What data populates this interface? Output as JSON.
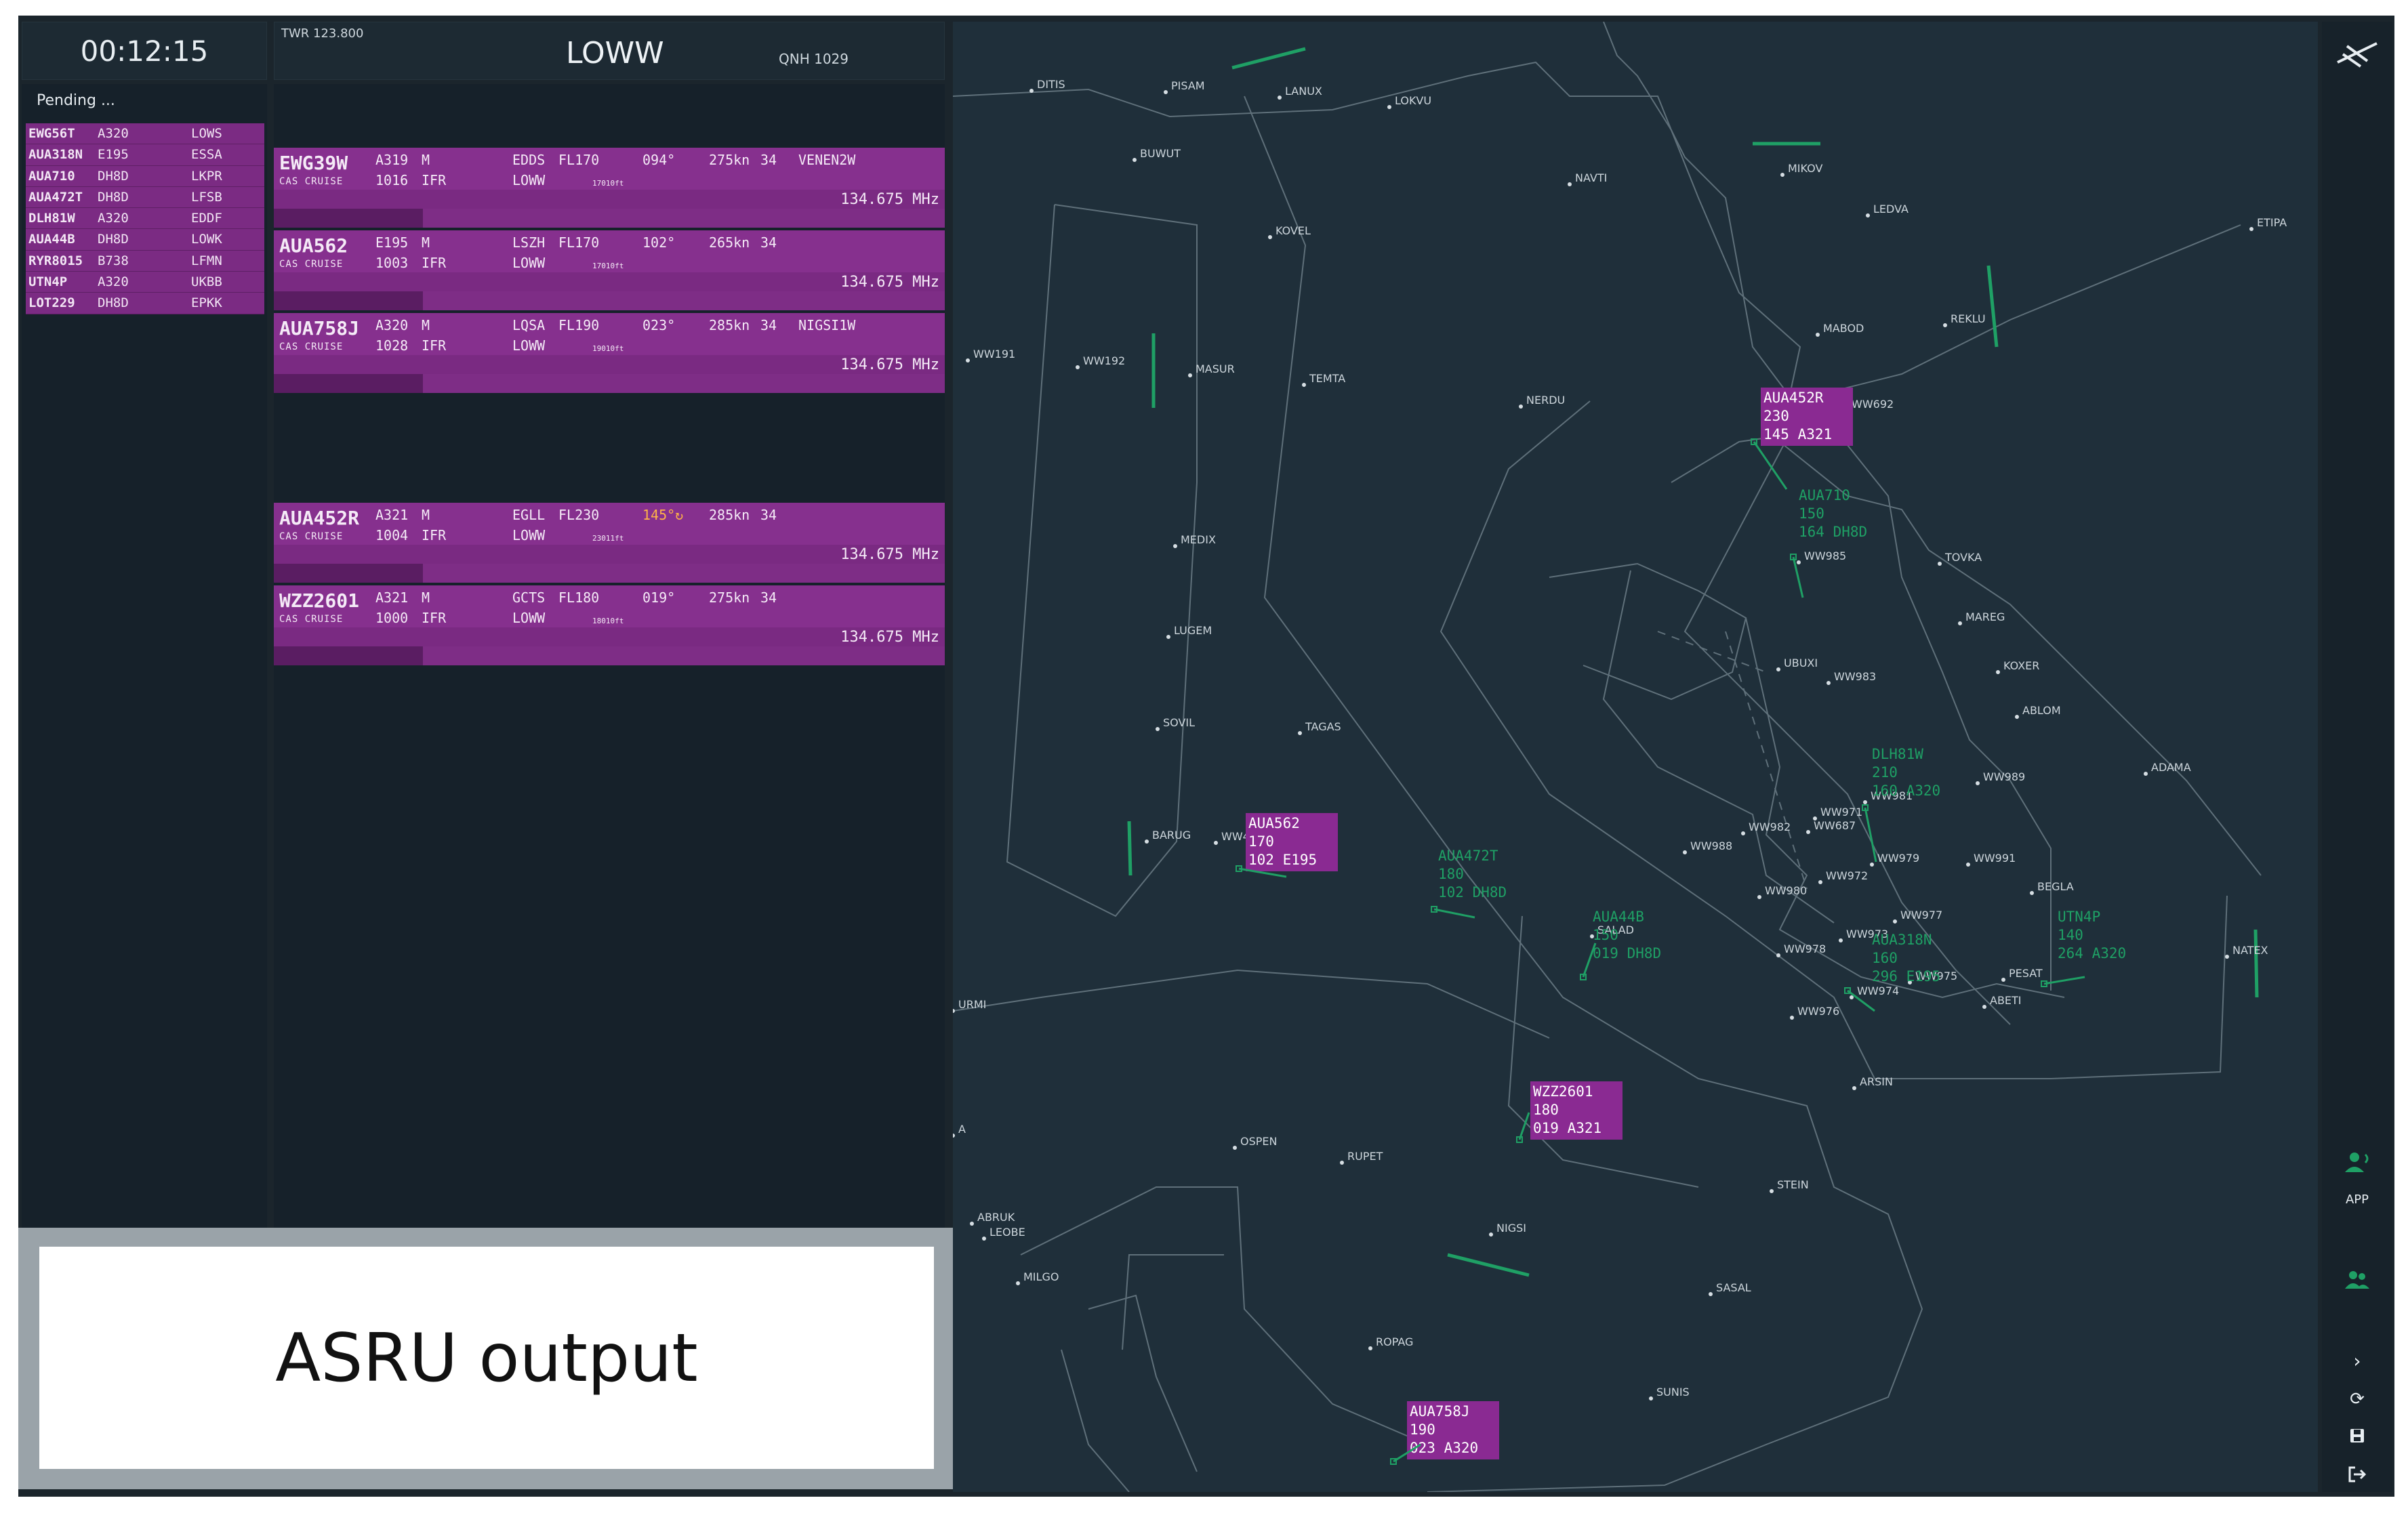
{
  "clock": "00:12:15",
  "header": {
    "frequency": "TWR 123.800",
    "airport": "LOWW",
    "qnh": "QNH 1029"
  },
  "pending": {
    "title": "Pending ...",
    "rows": [
      {
        "callsign": "EWG56T",
        "type": "A320",
        "dest": "LOWS"
      },
      {
        "callsign": "AUA318N",
        "type": "E195",
        "dest": "ESSA"
      },
      {
        "callsign": "AUA710",
        "type": "DH8D",
        "dest": "LKPR"
      },
      {
        "callsign": "AUA472T",
        "type": "DH8D",
        "dest": "LFSB"
      },
      {
        "callsign": "DLH81W",
        "type": "A320",
        "dest": "EDDF"
      },
      {
        "callsign": "AUA44B",
        "type": "DH8D",
        "dest": "LOWK"
      },
      {
        "callsign": "RYR8015",
        "type": "B738",
        "dest": "LFMN"
      },
      {
        "callsign": "UTN4P",
        "type": "A320",
        "dest": "UKBB"
      },
      {
        "callsign": "LOT229",
        "type": "DH8D",
        "dest": "EPKK"
      }
    ]
  },
  "strips": [
    {
      "callsign": "EWG39W",
      "status": "CAS CRUISE",
      "type": "A319",
      "wtc": "M",
      "squawk": "1016",
      "rules": "IFR",
      "adep": "EDDS",
      "fl": "FL170",
      "ades": "LOWW",
      "alt": "17010ft",
      "heading": "094°",
      "heading_amber": false,
      "speed": "275kn",
      "rwy": "34",
      "route": "VENEN2W",
      "freq": "134.675 MHz"
    },
    {
      "callsign": "AUA562",
      "status": "CAS CRUISE",
      "type": "E195",
      "wtc": "M",
      "squawk": "1003",
      "rules": "IFR",
      "adep": "LSZH",
      "fl": "FL170",
      "ades": "LOWW",
      "alt": "17010ft",
      "heading": "102°",
      "heading_amber": false,
      "speed": "265kn",
      "rwy": "34",
      "route": "",
      "freq": "134.675 MHz"
    },
    {
      "callsign": "AUA758J",
      "status": "CAS CRUISE",
      "type": "A320",
      "wtc": "M",
      "squawk": "1028",
      "rules": "IFR",
      "adep": "LQSA",
      "fl": "FL190",
      "ades": "LOWW",
      "alt": "19010ft",
      "heading": "023°",
      "heading_amber": false,
      "speed": "285kn",
      "rwy": "34",
      "route": "NIGSI1W",
      "freq": "134.675 MHz"
    },
    {
      "callsign": "AUA452R",
      "status": "CAS CRUISE",
      "type": "A321",
      "wtc": "M",
      "squawk": "1004",
      "rules": "IFR",
      "adep": "EGLL",
      "fl": "FL230",
      "ades": "LOWW",
      "alt": "23011ft",
      "heading": "145°↻",
      "heading_amber": true,
      "speed": "285kn",
      "rwy": "34",
      "route": "",
      "freq": "134.675 MHz"
    },
    {
      "callsign": "WZZ2601",
      "status": "CAS CRUISE",
      "type": "A321",
      "wtc": "M",
      "squawk": "1000",
      "rules": "IFR",
      "adep": "GCTS",
      "fl": "FL180",
      "ades": "LOWW",
      "alt": "18010ft",
      "heading": "019°",
      "heading_amber": false,
      "speed": "275kn",
      "rwy": "34",
      "route": "",
      "freq": "134.675 MHz"
    }
  ],
  "asru": {
    "label": "ASRU output"
  },
  "radar": {
    "waypoints": [
      "DITIS",
      "PISAM",
      "LANUX",
      "LOKVU",
      "BUWUT",
      "NAVTI",
      "MIKOV",
      "LEDVA",
      "ETIPA",
      "KOVEL",
      "MABOD",
      "REKLU",
      "WW191",
      "WW192",
      "MASUR",
      "TEMTA",
      "NERDU",
      "WW692",
      "MEDIX",
      "WW985",
      "TOVKA",
      "LUGEM",
      "MAREG",
      "UBUXI",
      "KOXER",
      "WW983",
      "ABLOM",
      "SOVIL",
      "TAGAS",
      "ADAMA",
      "WW989",
      "WW981",
      "WW971",
      "WW982",
      "WW687",
      "BARUG",
      "WW4",
      "WW988",
      "WW979",
      "WW991",
      "WW972",
      "BEGLA",
      "WW980",
      "WW977",
      "SALAD",
      "WW973",
      "WW978",
      "WW975",
      "PESAT",
      "NATEX",
      "WW974",
      "ABETI",
      "WW976",
      "URMI",
      "A",
      "ARSIN",
      "OSPEN",
      "RUPET",
      "STEIN",
      "ABRUK",
      "LEOBE",
      "NIGSI",
      "MILGO",
      "SASAL",
      "ROPAG",
      "SUNIS"
    ],
    "labels_magenta": [
      {
        "callsign": "AUA452R",
        "l2": "230",
        "l3": "145 A321"
      },
      {
        "callsign": "AUA562",
        "l2": "170",
        "l3": "102 E195"
      },
      {
        "callsign": "WZZ2601",
        "l2": "180",
        "l3": "019 A321"
      },
      {
        "callsign": "AUA758J",
        "l2": "190",
        "l3": "023 A320"
      }
    ],
    "labels_green": [
      {
        "callsign": "AUA710",
        "l2": "150",
        "l3": "164 DH8D"
      },
      {
        "callsign": "DLH81W",
        "l2": "210",
        "l3": "160 A320"
      },
      {
        "callsign": "AUA472T",
        "l2": "180",
        "l3": "102 DH8D"
      },
      {
        "callsign": "AUA44B",
        "l2": "150",
        "l3": "019 DH8D"
      },
      {
        "callsign": "AUA318N",
        "l2": "160",
        "l3": "296 E195"
      },
      {
        "callsign": "UTN4P",
        "l2": "140",
        "l3": "264 A320"
      }
    ],
    "colors": {
      "magenta": "#8a2a92",
      "green": "#1fa065",
      "line": "#6b7c86"
    }
  },
  "toolbar": {
    "app_label": "APP"
  }
}
